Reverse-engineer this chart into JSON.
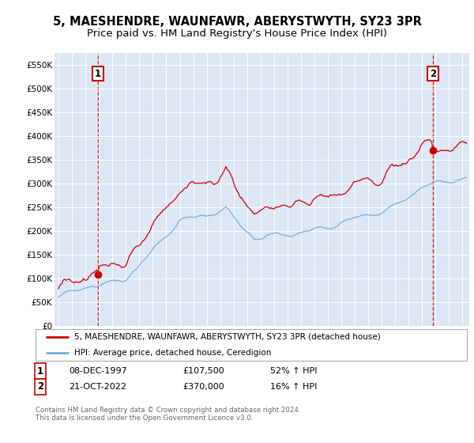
{
  "title": "5, MAESHENDRE, WAUNFAWR, ABERYSTWYTH, SY23 3PR",
  "subtitle": "Price paid vs. HM Land Registry's House Price Index (HPI)",
  "ylim": [
    0,
    575000
  ],
  "yticks": [
    0,
    50000,
    100000,
    150000,
    200000,
    250000,
    300000,
    350000,
    400000,
    450000,
    500000,
    550000
  ],
  "ytick_labels": [
    "£0",
    "£50K",
    "£100K",
    "£150K",
    "£200K",
    "£250K",
    "£300K",
    "£350K",
    "£400K",
    "£450K",
    "£500K",
    "£550K"
  ],
  "xlim_start": 1994.7,
  "xlim_end": 2025.5,
  "xticks": [
    1995,
    1996,
    1997,
    1998,
    1999,
    2000,
    2001,
    2002,
    2003,
    2004,
    2005,
    2006,
    2007,
    2008,
    2009,
    2010,
    2011,
    2012,
    2013,
    2014,
    2015,
    2016,
    2017,
    2018,
    2019,
    2020,
    2021,
    2022,
    2023,
    2024,
    2025
  ],
  "plot_bg": "#dce6f5",
  "red_line_color": "#cc0000",
  "blue_line_color": "#7aadda",
  "sale1_x": 1997.93,
  "sale1_y": 107500,
  "sale2_x": 2022.8,
  "sale2_y": 370000,
  "legend_line1": "5, MAESHENDRE, WAUNFAWR, ABERYSTWYTH, SY23 3PR (detached house)",
  "legend_line2": "HPI: Average price, detached house, Ceredigion",
  "copyright": "Contains HM Land Registry data © Crown copyright and database right 2024.\nThis data is licensed under the Open Government Licence v3.0.",
  "title_fontsize": 10.5,
  "subtitle_fontsize": 9.5
}
